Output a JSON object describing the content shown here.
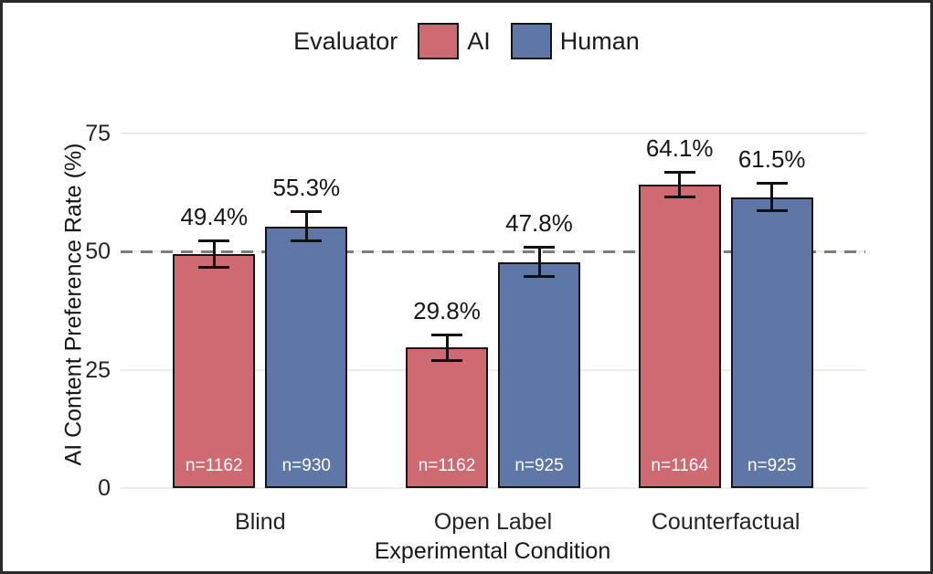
{
  "legend": {
    "title": "Evaluator",
    "items": [
      {
        "label": "AI",
        "color": "#CE6A71"
      },
      {
        "label": "Human",
        "color": "#5F77A6"
      }
    ]
  },
  "colors": {
    "ai_bar": "#CE6A71",
    "human_bar": "#5F77A6",
    "bar_border": "#141414",
    "grid": "#ececec",
    "reference_line": "#7d7d7d",
    "error_bar": "#111111",
    "n_label_text": "#ffffff"
  },
  "chart_data": {
    "type": "bar",
    "title": "",
    "categories": [
      "Blind",
      "Open Label",
      "Counterfactual"
    ],
    "series": [
      {
        "name": "AI",
        "color": "#CE6A71",
        "values": [
          49.4,
          29.8,
          64.1
        ],
        "value_labels": [
          "49.4%",
          "29.8%",
          "64.1%"
        ],
        "n_labels": [
          "n=1162",
          "n=1162",
          "n=1164"
        ],
        "err_low": [
          46.6,
          26.9,
          61.4
        ],
        "err_high": [
          52.3,
          32.5,
          66.9
        ]
      },
      {
        "name": "Human",
        "color": "#5F77A6",
        "values": [
          55.3,
          47.8,
          61.5
        ],
        "value_labels": [
          "55.3%",
          "47.8%",
          "61.5%"
        ],
        "n_labels": [
          "n=930",
          "n=925",
          "n=925"
        ],
        "err_low": [
          52.2,
          44.7,
          58.6
        ],
        "err_high": [
          58.6,
          51.0,
          64.5
        ]
      }
    ],
    "xlabel": "Experimental Condition",
    "ylabel": "AI Content Preference Rate (%)",
    "yticks": [
      0,
      25,
      50,
      75
    ],
    "ylim": [
      0,
      80
    ],
    "reference_line": 50,
    "grid": true,
    "legend_position": "top"
  }
}
